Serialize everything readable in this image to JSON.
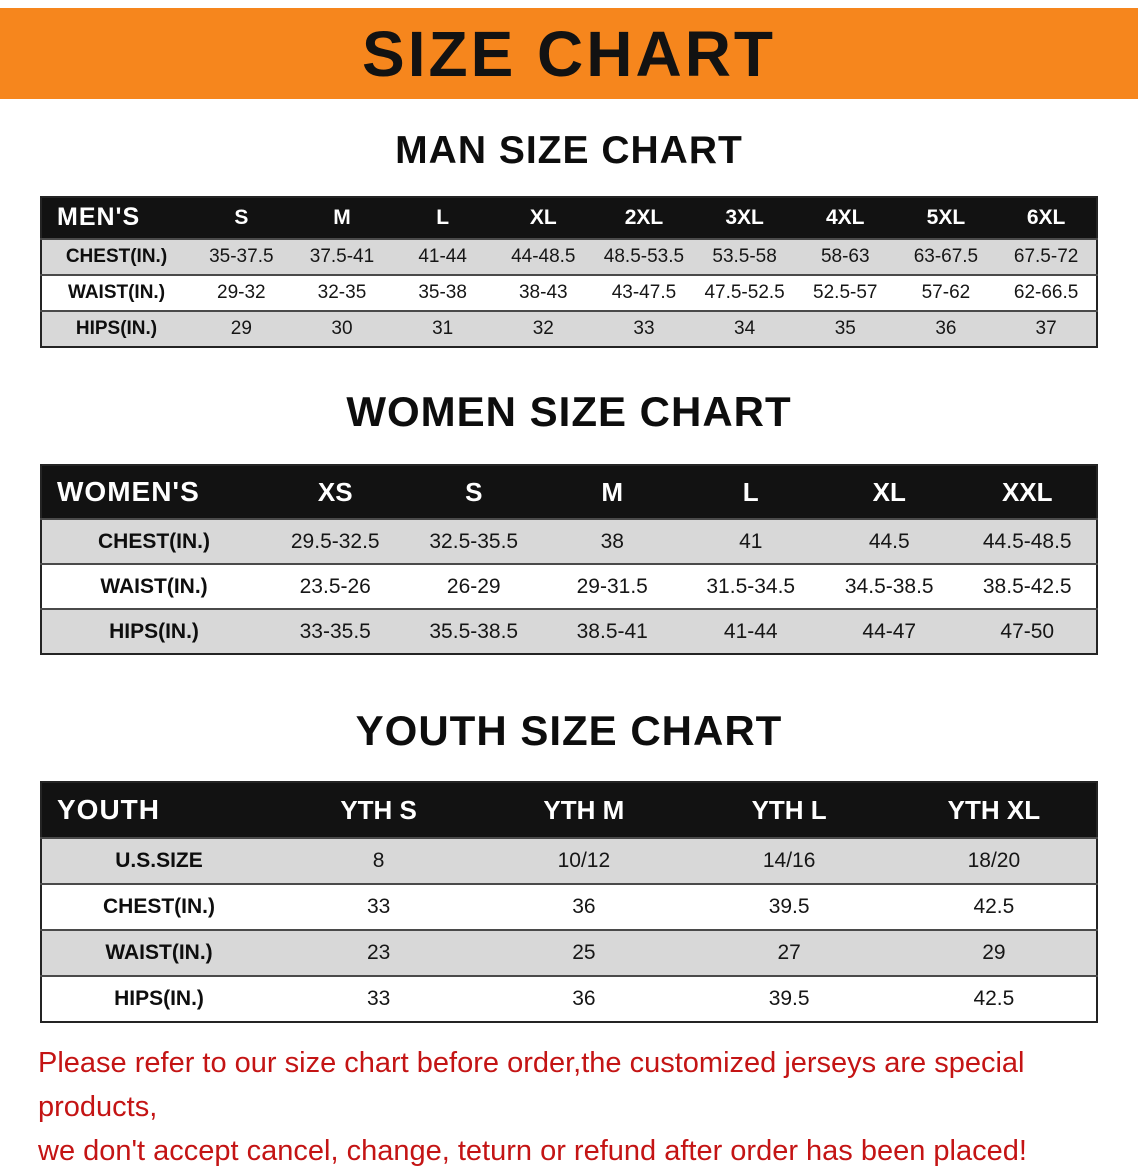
{
  "banner": {
    "title": "SIZE CHART"
  },
  "colors": {
    "banner_bg": "#F6861D",
    "table_header_bg": "#121212",
    "row_alt_bg": "#D8D8D8",
    "disclaimer_red": "#C41414"
  },
  "sections": [
    {
      "heading": "MAN SIZE CHART",
      "table": {
        "header": [
          "MEN'S",
          "S",
          "M",
          "L",
          "XL",
          "2XL",
          "3XL",
          "4XL",
          "5XL",
          "6XL"
        ],
        "rows": [
          {
            "label": "CHEST(IN.)",
            "values": [
              "35-37.5",
              "37.5-41",
              "41-44",
              "44-48.5",
              "48.5-53.5",
              "53.5-58",
              "58-63",
              "63-67.5",
              "67.5-72"
            ]
          },
          {
            "label": "WAIST(IN.)",
            "values": [
              "29-32",
              "32-35",
              "35-38",
              "38-43",
              "43-47.5",
              "47.5-52.5",
              "52.5-57",
              "57-62",
              "62-66.5"
            ]
          },
          {
            "label": "HIPS(IN.)",
            "values": [
              "29",
              "30",
              "31",
              "32",
              "33",
              "34",
              "35",
              "36",
              "37"
            ]
          }
        ]
      }
    },
    {
      "heading": "WOMEN SIZE CHART",
      "table": {
        "header": [
          "WOMEN'S",
          "XS",
          "S",
          "M",
          "L",
          "XL",
          "XXL"
        ],
        "rows": [
          {
            "label": "CHEST(IN.)",
            "values": [
              "29.5-32.5",
              "32.5-35.5",
              "38",
              "41",
              "44.5",
              "44.5-48.5"
            ]
          },
          {
            "label": "WAIST(IN.)",
            "values": [
              "23.5-26",
              "26-29",
              "29-31.5",
              "31.5-34.5",
              "34.5-38.5",
              "38.5-42.5"
            ]
          },
          {
            "label": "HIPS(IN.)",
            "values": [
              "33-35.5",
              "35.5-38.5",
              "38.5-41",
              "41-44",
              "44-47",
              "47-50"
            ]
          }
        ]
      }
    },
    {
      "heading": "YOUTH SIZE CHART",
      "table": {
        "header": [
          "YOUTH",
          "YTH S",
          "YTH M",
          "YTH L",
          "YTH XL"
        ],
        "rows": [
          {
            "label": "U.S.SIZE",
            "values": [
              "8",
              "10/12",
              "14/16",
              "18/20"
            ]
          },
          {
            "label": "CHEST(IN.)",
            "values": [
              "33",
              "36",
              "39.5",
              "42.5"
            ]
          },
          {
            "label": "WAIST(IN.)",
            "values": [
              "23",
              "25",
              "27",
              "29"
            ]
          },
          {
            "label": "HIPS(IN.)",
            "values": [
              "33",
              "36",
              "39.5",
              "42.5"
            ]
          }
        ]
      }
    }
  ],
  "disclaimer": {
    "line1": "Please refer to our size chart before order,the customized jerseys are special products,",
    "line2": "we don't accept cancel, change, teturn or refund after order has been placed!"
  }
}
